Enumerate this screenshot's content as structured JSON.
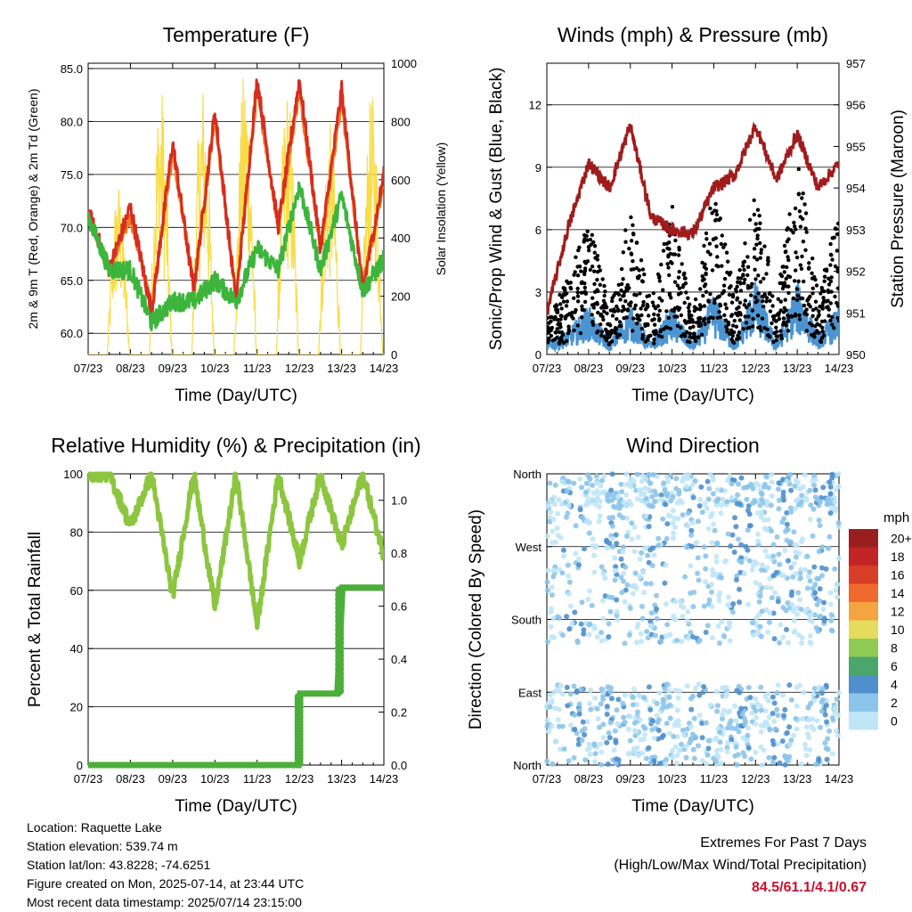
{
  "x_ticks": [
    "07/23",
    "08/23",
    "09/23",
    "10/23",
    "11/23",
    "12/23",
    "13/23",
    "14/23"
  ],
  "x_label": "Time (Day/UTC)",
  "temperature": {
    "title": "Temperature (F)",
    "ylabel_left": "2m & 9m T (Red, Orange) & 2m Td (Green)",
    "ylabel_right": "Solar Insolation (Yellow)",
    "left_ticks": [
      "60.0",
      "65.0",
      "70.0",
      "75.0",
      "80.0",
      "85.0"
    ],
    "right_ticks": [
      "0",
      "200",
      "400",
      "600",
      "800",
      "1000"
    ]
  },
  "winds": {
    "title": "Winds (mph) & Pressure (mb)",
    "ylabel_left": "Sonic/Prop Wind & Gust (Blue, Black)",
    "ylabel_right": "Station Pressure (Maroon)",
    "left_ticks": [
      "0",
      "3",
      "6",
      "9",
      "12"
    ],
    "right_ticks": [
      "950",
      "951",
      "952",
      "953",
      "954",
      "955",
      "956",
      "957"
    ]
  },
  "humidity": {
    "title": "Relative Humidity (%) & Precipitation (in)",
    "ylabel_left": "Percent & Total Rainfall",
    "left_ticks": [
      "0",
      "20",
      "40",
      "60",
      "80",
      "100"
    ],
    "right_ticks": [
      "0.0",
      "0.2",
      "0.4",
      "0.6",
      "0.8",
      "1.0"
    ]
  },
  "direction": {
    "title": "Wind Direction",
    "ylabel_left": "Direction (Colored By Speed)",
    "left_ticks": [
      "North",
      "East",
      "South",
      "West",
      "North"
    ],
    "legend_title": "mph",
    "legend_labels": [
      "0",
      "2",
      "4",
      "6",
      "8",
      "10",
      "12",
      "14",
      "16",
      "18",
      "20+"
    ],
    "legend_colors": [
      "#bfe6f7",
      "#8cc4ea",
      "#4f8fcc",
      "#4ba66a",
      "#8fcc55",
      "#e4dc5a",
      "#f5a442",
      "#ef6a2c",
      "#d83d28",
      "#c02424",
      "#9b1e1e"
    ]
  },
  "info": {
    "location": "Location: Raquette Lake",
    "elevation": "Station elevation: 539.74 m",
    "latlon": "Station lat/lon: 43.8228; -74.6251",
    "created": "Figure created on Mon, 2025-07-14, at 23:44 UTC",
    "latest": "Most recent data timestamp: 2025/07/14 23:15:00"
  },
  "extremes": {
    "title": "Extremes For Past 7 Days",
    "subtitle": "(High/Low/Max Wind/Total Precipitation)",
    "values": "84.5/61.1/4.1/0.67"
  },
  "chart_data": [
    {
      "type": "line",
      "title": "Temperature (F)",
      "xlabel": "Time (Day/UTC)",
      "ylabel": "2m & 9m T (Red, Orange) & 2m Td (Green)",
      "y2label": "Solar Insolation (Yellow)",
      "x": [
        0,
        0.5,
        1,
        1.5,
        2,
        2.5,
        3,
        3.5,
        4,
        4.5,
        5,
        5.5,
        6,
        6.5,
        7
      ],
      "x_units": "days since 07/23",
      "ylim": [
        58,
        85.5
      ],
      "y2lim": [
        0,
        1000
      ],
      "series": [
        {
          "name": "2m T",
          "color": "#d62d20",
          "values": [
            71.5,
            66,
            72,
            62,
            78,
            64,
            81,
            63,
            84,
            70,
            84,
            68,
            83,
            64,
            75
          ]
        },
        {
          "name": "9m T",
          "color": "#f07a1e",
          "values": [
            71.3,
            66,
            71,
            62.5,
            77,
            64.5,
            80,
            63.5,
            83,
            70,
            83,
            68,
            82,
            64.5,
            74
          ]
        },
        {
          "name": "2m Td",
          "color": "#3db53d",
          "values": [
            71,
            66,
            66,
            61,
            63,
            63,
            65,
            63,
            68,
            66,
            74,
            66,
            73,
            64,
            67
          ]
        },
        {
          "name": "Solar Insolation",
          "color": "#f7dc45",
          "axis": "right",
          "values": [
            0,
            600,
            0,
            940,
            0,
            950,
            0,
            1000,
            0,
            930,
            0,
            800,
            0,
            900,
            0
          ]
        }
      ]
    },
    {
      "type": "scatter",
      "title": "Winds (mph) & Pressure (mb)",
      "xlabel": "Time (Day/UTC)",
      "ylabel": "Sonic/Prop Wind & Gust (Blue, Black)",
      "y2label": "Station Pressure (Maroon)",
      "x": [
        0,
        0.5,
        1,
        1.5,
        2,
        2.5,
        3,
        3.5,
        4,
        4.5,
        5,
        5.5,
        6,
        6.5,
        7
      ],
      "x_units": "days since 07/23",
      "ylim": [
        0,
        14
      ],
      "y2lim": [
        950,
        957
      ],
      "series": [
        {
          "name": "Gust",
          "color": "#000000",
          "values": [
            1.5,
            3,
            5.5,
            2,
            6,
            2,
            6,
            1.5,
            7,
            2.5,
            7,
            2,
            8,
            2.5,
            6
          ]
        },
        {
          "name": "Wind",
          "color": "#4b93d1",
          "values": [
            0.5,
            1,
            2,
            0.5,
            2,
            0.5,
            2,
            0.5,
            2.5,
            0.5,
            3,
            0.5,
            3,
            0.8,
            2
          ]
        },
        {
          "name": "Station Pressure",
          "color": "#a01c1c",
          "axis": "right",
          "values": [
            951,
            953,
            954.6,
            954,
            955.5,
            953.3,
            953,
            952.9,
            954,
            954.3,
            955.5,
            954.2,
            955.3,
            954,
            954.6
          ]
        }
      ]
    },
    {
      "type": "line",
      "title": "Relative Humidity (%) & Precipitation (in)",
      "xlabel": "Time (Day/UTC)",
      "ylabel": "Percent & Total Rainfall",
      "x": [
        0,
        0.5,
        1,
        1.5,
        2,
        2.5,
        3,
        3.5,
        4,
        4.5,
        5,
        5.5,
        6,
        6.5,
        7
      ],
      "x_units": "days since 07/23",
      "ylim": [
        0,
        100
      ],
      "y2lim": [
        0,
        1.1
      ],
      "series": [
        {
          "name": "Relative Humidity",
          "color": "#8cc63f",
          "values": [
            100,
            100,
            82,
            100,
            58,
            100,
            54,
            100,
            48,
            100,
            70,
            100,
            75,
            100,
            72
          ]
        },
        {
          "name": "Total Precipitation",
          "color": "#4cae3a",
          "axis": "right",
          "values": [
            0,
            0,
            0,
            0,
            0,
            0,
            0,
            0,
            0,
            0,
            0.27,
            0.27,
            0.67,
            0.67,
            0.67
          ]
        }
      ]
    },
    {
      "type": "scatter",
      "title": "Wind Direction",
      "xlabel": "Time (Day/UTC)",
      "ylabel": "Direction (Colored By Speed)",
      "y_categories": [
        "North",
        "East",
        "South",
        "West",
        "North"
      ],
      "x_units": "days since 07/23",
      "legend_title": "mph",
      "legend": [
        "0",
        "2",
        "4",
        "6",
        "8",
        "10",
        "12",
        "14",
        "16",
        "18",
        "20+"
      ]
    }
  ]
}
